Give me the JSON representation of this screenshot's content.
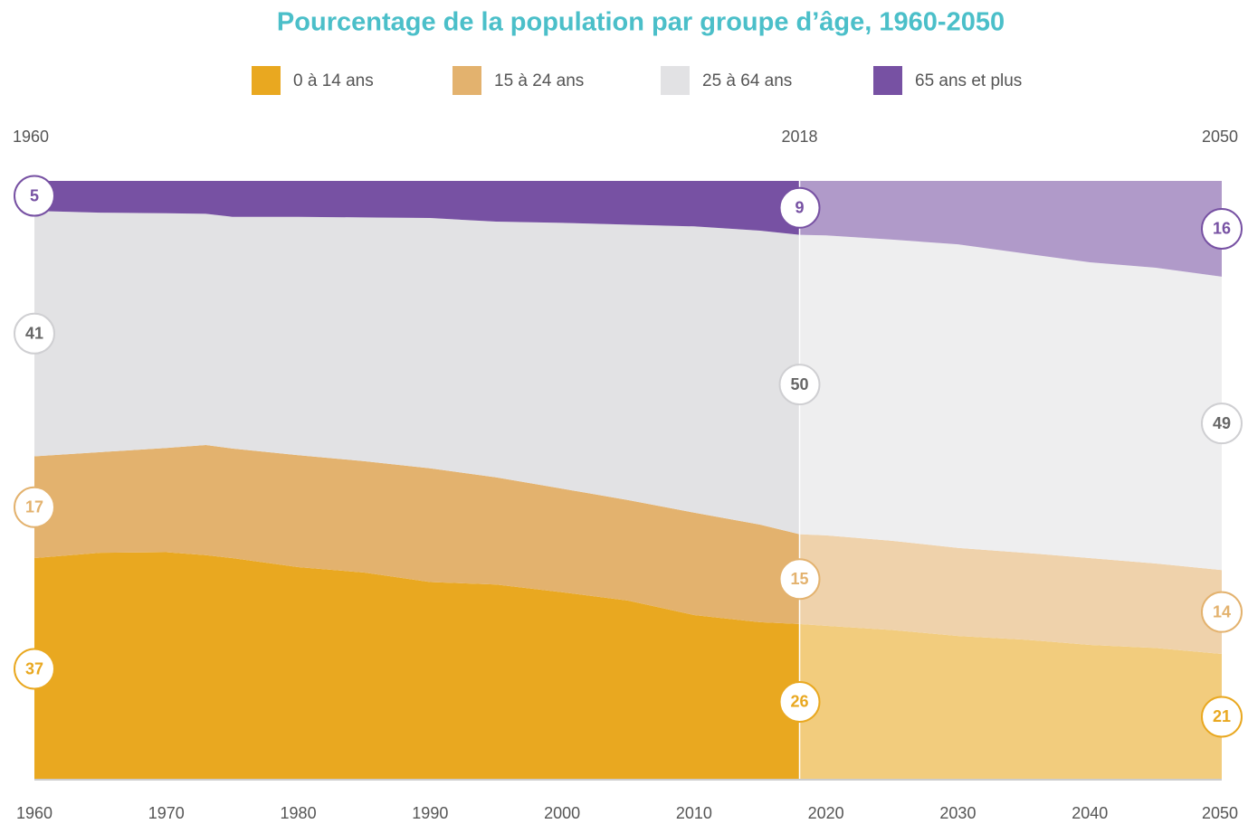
{
  "chart_data": {
    "type": "stacked_area",
    "title": "Pourcentage de la population par groupe d’âge, 1960-2050",
    "x": [
      1960,
      1965,
      1970,
      1973,
      1975,
      1980,
      1985,
      1990,
      1995,
      2000,
      2005,
      2010,
      2015,
      2018,
      2020,
      2025,
      2030,
      2035,
      2040,
      2045,
      2050
    ],
    "series": [
      {
        "name": "0 à 14 ans",
        "color": "#e9a820",
        "values": [
          37,
          37.9,
          38,
          37.5,
          37,
          35.5,
          34.6,
          33,
          32.6,
          31.3,
          29.9,
          27.5,
          26.3,
          26,
          25.7,
          25,
          24,
          23.4,
          22.5,
          22,
          21
        ]
      },
      {
        "name": "15 à 24 ans",
        "color": "#e3b26e",
        "values": [
          17,
          16.8,
          17.4,
          18.4,
          18.3,
          18.7,
          18.6,
          19,
          17.9,
          17.3,
          16.8,
          17.1,
          16.3,
          15,
          15.1,
          14.9,
          14.7,
          14.5,
          14.5,
          14.1,
          14
        ]
      },
      {
        "name": "25 à 64 ans",
        "color": "#e2e2e4",
        "values": [
          41,
          40,
          39.2,
          38.6,
          38.7,
          39.8,
          40.7,
          41.8,
          42.7,
          44.4,
          46,
          47.8,
          49.1,
          50,
          50.1,
          50.3,
          50.7,
          50,
          49.4,
          49.4,
          49
        ]
      },
      {
        "name": "65 ans et plus",
        "color": "#7751a3",
        "values": [
          5,
          5.3,
          5.4,
          5.5,
          6,
          6,
          6.1,
          6.2,
          6.8,
          7,
          7.3,
          7.6,
          8.3,
          9,
          9.1,
          9.8,
          10.6,
          12.1,
          13.6,
          14.5,
          16
        ]
      }
    ],
    "markers": [
      1960,
      2018,
      2050
    ],
    "xlim": [
      1960,
      2050
    ],
    "xticks": [
      1960,
      1970,
      1980,
      1990,
      2000,
      2010,
      2020,
      2030,
      2040,
      2050
    ],
    "ylim": [
      0,
      100
    ]
  }
}
